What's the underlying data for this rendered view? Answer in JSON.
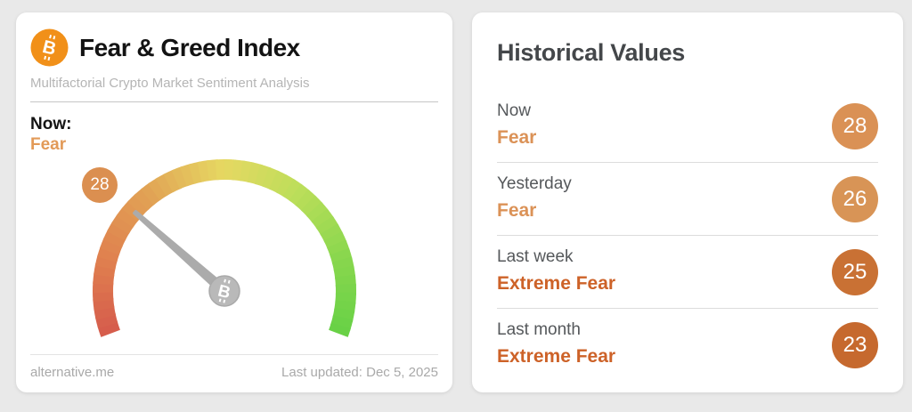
{
  "chart_data": {
    "type": "gauge",
    "title": "Fear & Greed Index",
    "value": 28,
    "classification": "Fear",
    "range": [
      0,
      100
    ],
    "scale_note": "0 = Extreme Fear (red) to 100 = Extreme Greed (green)",
    "last_updated": "Dec 5, 2025",
    "historical_values": [
      {
        "period": "Now",
        "classification": "Fear",
        "value": 28
      },
      {
        "period": "Yesterday",
        "classification": "Fear",
        "value": 26
      },
      {
        "period": "Last week",
        "classification": "Extreme Fear",
        "value": 25
      },
      {
        "period": "Last month",
        "classification": "Extreme Fear",
        "value": 23
      }
    ]
  },
  "bitcoin": {
    "letter": "B",
    "symbol": "₿",
    "color": "#f19019"
  },
  "gauge_card": {
    "title": "Fear & Greed Index",
    "subtitle": "Multifactorial Crypto Market Sentiment Analysis",
    "now_label": "Now:",
    "now_classification": "Fear",
    "now_classification_color": "#e29a58",
    "badge_value": "28",
    "badge_color": "#db8f50",
    "footer_left": "alternative.me",
    "footer_right": "Last updated: Dec 5, 2025"
  },
  "gauge": {
    "value": 28,
    "min": 0,
    "max": 100,
    "start_angle": 200.5,
    "end_angle": -20.5,
    "track_colors": [
      "#d55a4c",
      "#e0814f",
      "#e1a355",
      "#e6d862",
      "#bcde5a",
      "#8ad74e",
      "#67d146"
    ],
    "needle_color": "#ababab",
    "hub_color": "#b9b9b9"
  },
  "historical": {
    "title": "Historical Values",
    "rows": [
      {
        "label": "Now",
        "classification": "Fear",
        "classification_color": "#db9257",
        "value": "28",
        "value_color": "#da9155"
      },
      {
        "label": "Yesterday",
        "classification": "Fear",
        "classification_color": "#db9257",
        "value": "26",
        "value_color": "#d89456"
      },
      {
        "label": "Last week",
        "classification": "Extreme Fear",
        "classification_color": "#cd6228",
        "value": "25",
        "value_color": "#c97134"
      },
      {
        "label": "Last month",
        "classification": "Extreme Fear",
        "classification_color": "#cd6228",
        "value": "23",
        "value_color": "#c6692e"
      }
    ]
  }
}
